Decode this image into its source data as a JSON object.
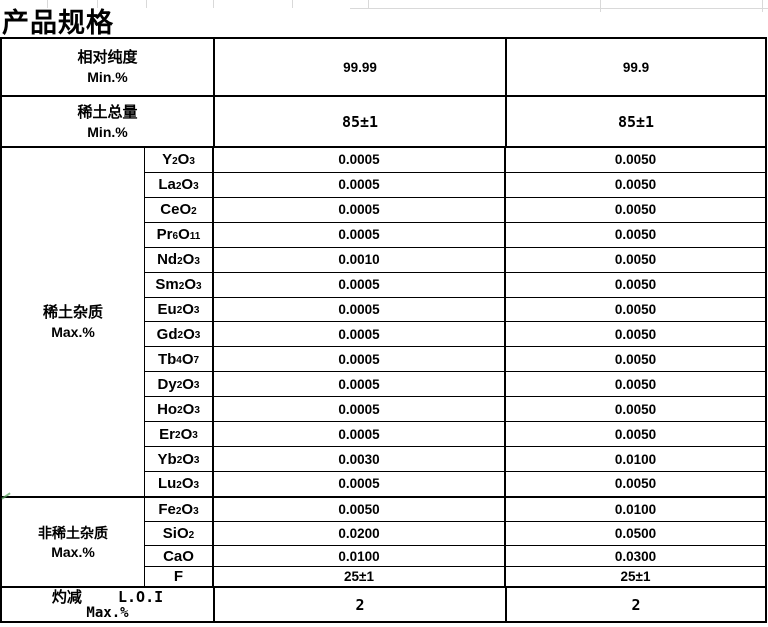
{
  "page_title": "产品规格",
  "table": {
    "rows": {
      "purity": {
        "label_cn": "相对纯度",
        "label_unit": "Min.%",
        "grade1": "99.99",
        "grade2": "99.9"
      },
      "total": {
        "label_cn": "稀土总量",
        "label_unit": "Min.%",
        "grade1": "85±1",
        "grade2": "85±1"
      },
      "re": {
        "label_cn": "稀土杂质",
        "label_unit": "Max.%",
        "items": [
          {
            "formula": [
              "Y",
              "2",
              "O",
              "3"
            ],
            "grade1": "0.0005",
            "grade2": "0.0050"
          },
          {
            "formula": [
              "La",
              "2",
              "O",
              "3"
            ],
            "grade1": "0.0005",
            "grade2": "0.0050"
          },
          {
            "formula": [
              "CeO",
              "2"
            ],
            "grade1": "0.0005",
            "grade2": "0.0050"
          },
          {
            "formula": [
              "Pr",
              "6",
              "O",
              "11"
            ],
            "grade1": "0.0005",
            "grade2": "0.0050"
          },
          {
            "formula": [
              "Nd",
              "2",
              "O",
              "3"
            ],
            "grade1": "0.0010",
            "grade2": "0.0050"
          },
          {
            "formula": [
              "Sm",
              "2",
              "O",
              "3"
            ],
            "grade1": "0.0005",
            "grade2": "0.0050"
          },
          {
            "formula": [
              "Eu",
              "2",
              "O",
              "3"
            ],
            "grade1": "0.0005",
            "grade2": "0.0050"
          },
          {
            "formula": [
              "Gd",
              "2",
              "O",
              "3"
            ],
            "grade1": "0.0005",
            "grade2": "0.0050"
          },
          {
            "formula": [
              "Tb",
              "4",
              "O",
              "7"
            ],
            "grade1": "0.0005",
            "grade2": "0.0050"
          },
          {
            "formula": [
              "Dy",
              "2",
              "O",
              "3"
            ],
            "grade1": "0.0005",
            "grade2": "0.0050"
          },
          {
            "formula": [
              "Ho",
              "2",
              "O",
              "3"
            ],
            "grade1": "0.0005",
            "grade2": "0.0050"
          },
          {
            "formula": [
              "Er",
              "2",
              "O",
              "3"
            ],
            "grade1": "0.0005",
            "grade2": "0.0050"
          },
          {
            "formula": [
              "Yb",
              "2",
              "O",
              "3"
            ],
            "grade1": "0.0030",
            "grade2": "0.0100"
          },
          {
            "formula": [
              "Lu",
              "2",
              "O",
              "3"
            ],
            "grade1": "0.0005",
            "grade2": "0.0050"
          }
        ]
      },
      "non_re": {
        "label_cn": "非稀土杂质",
        "label_unit": "Max.%",
        "items": [
          {
            "formula": [
              "Fe",
              "2",
              "O",
              "3"
            ],
            "grade1": "0.0050",
            "grade2": "0.0100"
          },
          {
            "formula": [
              "SiO",
              "2"
            ],
            "grade1": "0.0200",
            "grade2": "0.0500"
          },
          {
            "formula": [
              "CaO"
            ],
            "grade1": "0.0100",
            "grade2": "0.0300"
          },
          {
            "formula": [
              "F"
            ],
            "grade1": "25±1",
            "grade2": "25±1"
          }
        ]
      },
      "loi": {
        "label_line1": "灼减    L.O.I",
        "label_line2": "Max.%",
        "grade1": "2",
        "grade2": "2"
      }
    }
  },
  "colors": {
    "border": "#000000",
    "text": "#000000",
    "faint_grid": "#d9d9d9",
    "corner_mark": "#57a05c"
  }
}
